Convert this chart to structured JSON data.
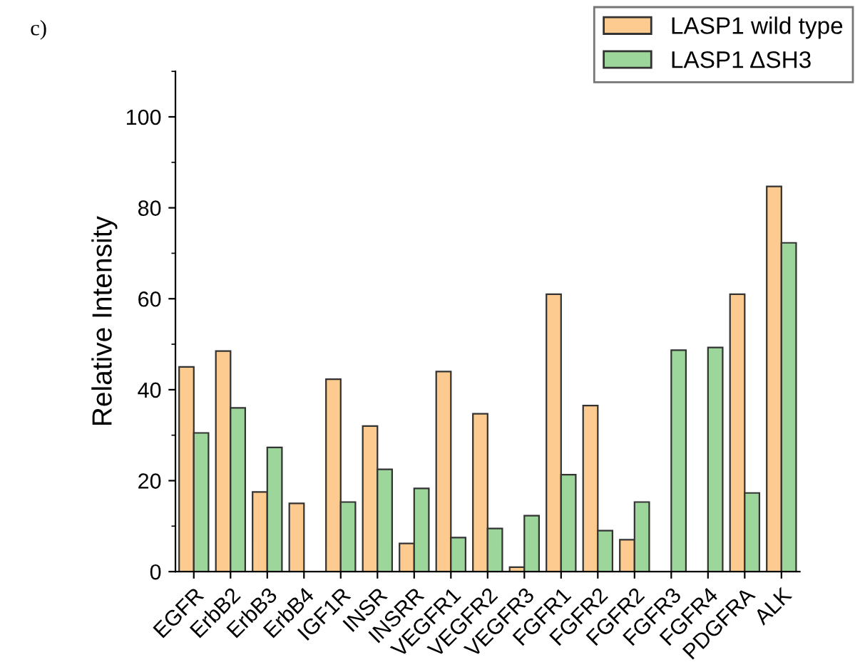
{
  "chart_data": {
    "type": "bar",
    "ylabel": "Relative Intensity",
    "annotations": [
      "c)"
    ],
    "categories": [
      "EGFR",
      "ErbB2",
      "ErbB3",
      "ErbB4",
      "IGF1R",
      "INSR",
      "INSRR",
      "VEGFR1",
      "VEGFR2",
      "VEGFR3",
      "FGFR1",
      "FGFR2",
      "FGFR2",
      "FGFR3",
      "FGFR4",
      "PDGFRA",
      "ALK"
    ],
    "series": [
      {
        "name": "LASP1 wild type",
        "color": "#fdcb8f",
        "values": [
          45,
          48.5,
          17.5,
          15,
          42.3,
          32,
          6.2,
          44,
          34.7,
          1,
          61,
          36.5,
          7,
          null,
          null,
          61,
          84.7
        ]
      },
      {
        "name": "LASP1 ΔSH3",
        "color": "#9dd69b",
        "values": [
          30.5,
          36,
          27.3,
          null,
          15.3,
          22.5,
          18.3,
          7.5,
          9.5,
          12.3,
          21.3,
          9,
          15.3,
          48.7,
          49.3,
          17.3,
          72.3
        ]
      }
    ],
    "ylim": [
      0,
      110
    ],
    "yticks": [
      0,
      20,
      40,
      60,
      80,
      100
    ],
    "grid": false,
    "legend": "top right"
  }
}
